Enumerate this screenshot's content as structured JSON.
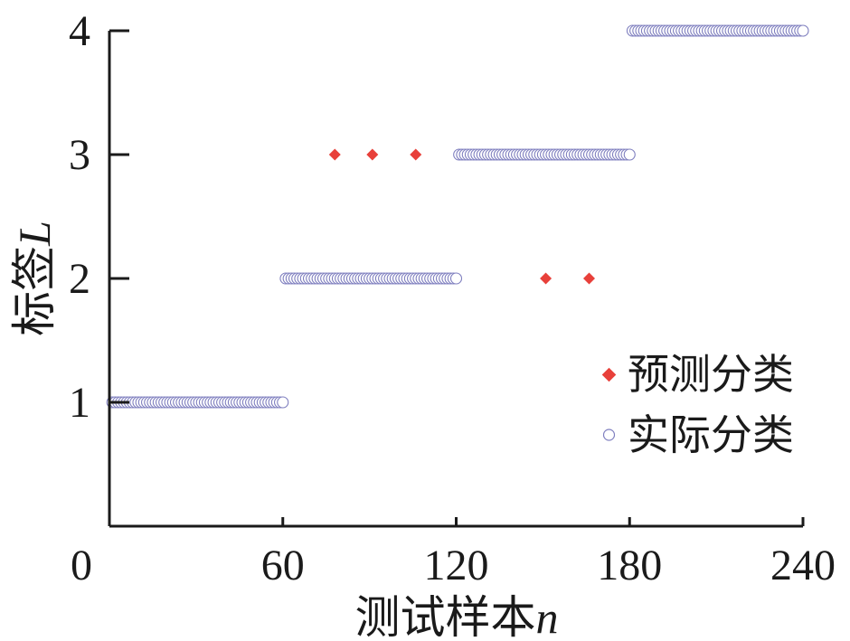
{
  "chart_data": {
    "type": "scatter",
    "xlabel": "测试样本",
    "xlabel_var": "n",
    "ylabel": "标签",
    "ylabel_var": "L",
    "xlim": [
      0,
      240
    ],
    "ylim": [
      0,
      4
    ],
    "x_ticks": [
      "0",
      "60",
      "120",
      "180",
      "240"
    ],
    "y_ticks": [
      "1",
      "2",
      "3",
      "4"
    ],
    "grid": false,
    "legend_position": "right",
    "series": [
      {
        "name": "预测分类",
        "marker": "diamond",
        "color": "#e8403a",
        "segments": [
          {
            "x_start": 1,
            "x_end": 60,
            "y": 1
          },
          {
            "x_start": 61,
            "x_end": 120,
            "y": 2
          },
          {
            "x_start": 121,
            "x_end": 180,
            "y": 3
          },
          {
            "x_start": 181,
            "x_end": 240,
            "y": 4
          }
        ],
        "points": [
          {
            "x": 78,
            "y": 3
          },
          {
            "x": 91,
            "y": 3
          },
          {
            "x": 106,
            "y": 3
          },
          {
            "x": 151,
            "y": 2
          },
          {
            "x": 166,
            "y": 2
          }
        ]
      },
      {
        "name": "实际分类",
        "marker": "circle",
        "color": "#7f7fbf",
        "segments": [
          {
            "x_start": 1,
            "x_end": 60,
            "y": 1
          },
          {
            "x_start": 61,
            "x_end": 120,
            "y": 2
          },
          {
            "x_start": 121,
            "x_end": 180,
            "y": 3
          },
          {
            "x_start": 181,
            "x_end": 240,
            "y": 4
          }
        ],
        "points": []
      }
    ]
  }
}
